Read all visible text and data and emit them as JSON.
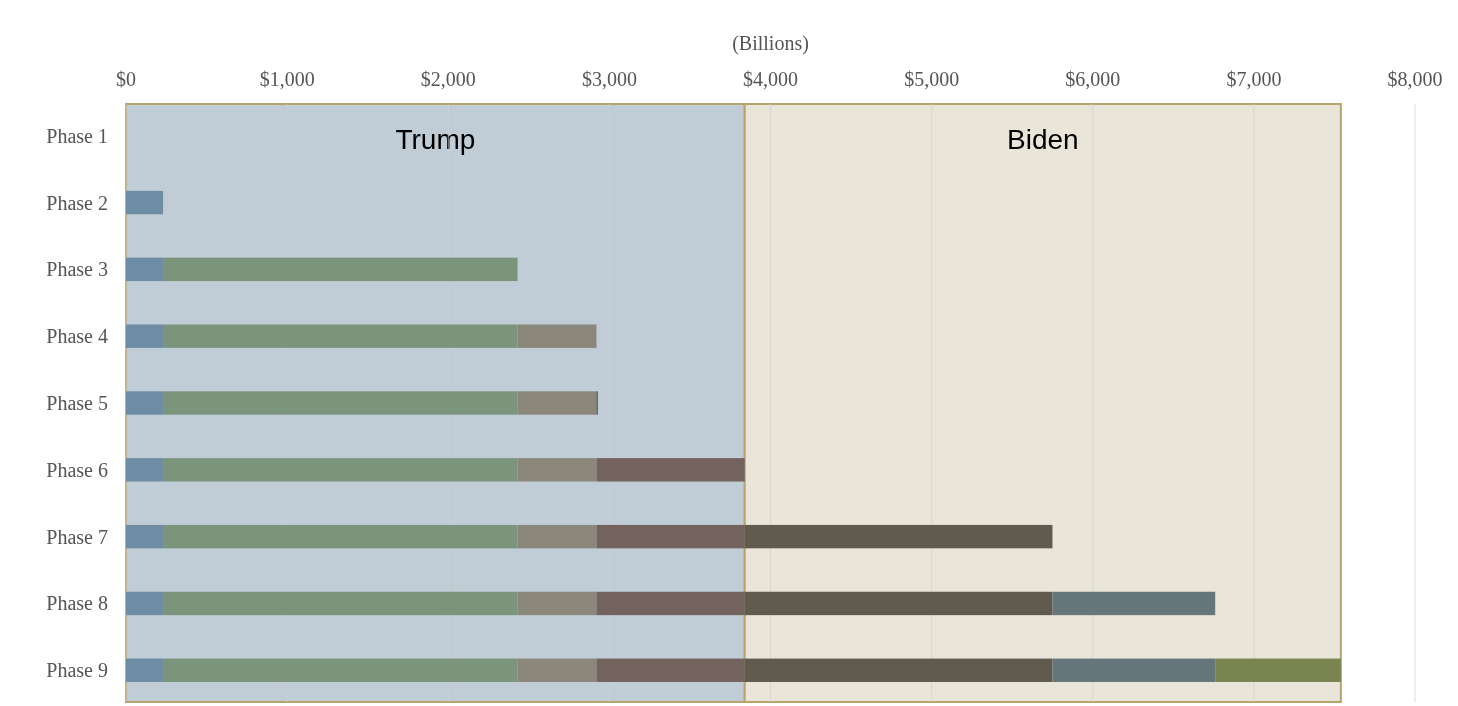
{
  "chart_data": {
    "type": "bar",
    "orientation": "horizontal",
    "stacked": true,
    "xlabel": "(Billions)",
    "categories": [
      "Phase 1",
      "Phase 2",
      "Phase 3",
      "Phase 4",
      "Phase 5",
      "Phase 6",
      "Phase 7",
      "Phase 8",
      "Phase 9"
    ],
    "series": [
      {
        "color": "#6e8ca3",
        "values": [
          null,
          230,
          230,
          230,
          230,
          230,
          230,
          230,
          230
        ]
      },
      {
        "color": "#7a957b",
        "values": [
          null,
          null,
          2200,
          2200,
          2200,
          2200,
          2200,
          2200,
          2200
        ]
      },
      {
        "color": "#8b877b",
        "values": [
          null,
          null,
          null,
          490,
          490,
          490,
          490,
          490,
          490
        ]
      },
      {
        "color": "#5c4a4a",
        "values": [
          null,
          null,
          null,
          null,
          8,
          null,
          null,
          null,
          null
        ]
      },
      {
        "color": "#74625e",
        "values": [
          null,
          null,
          null,
          null,
          null,
          920,
          920,
          920,
          920
        ]
      },
      {
        "color": "#5f5b4f",
        "values": [
          null,
          null,
          null,
          null,
          null,
          null,
          1910,
          1910,
          1910
        ]
      },
      {
        "color": "#66767a",
        "values": [
          null,
          null,
          null,
          null,
          null,
          null,
          null,
          1010,
          1010
        ]
      },
      {
        "color": "#7a8450",
        "values": [
          null,
          null,
          null,
          null,
          null,
          null,
          null,
          null,
          780
        ]
      }
    ],
    "xlim": [
      0,
      8000
    ],
    "xticks": [
      {
        "value": 0,
        "label": "$0"
      },
      {
        "value": 1000,
        "label": "$1,000"
      },
      {
        "value": 2000,
        "label": "$2,000"
      },
      {
        "value": 3000,
        "label": "$3,000"
      },
      {
        "value": 4000,
        "label": "$4,000"
      },
      {
        "value": 5000,
        "label": "$5,000"
      },
      {
        "value": 6000,
        "label": "$6,000"
      },
      {
        "value": 7000,
        "label": "$7,000"
      },
      {
        "value": 8000,
        "label": "$8,000"
      }
    ],
    "grid": "x",
    "bands": [
      {
        "axis": "x",
        "from": 0,
        "to": 3840,
        "label": "Trump",
        "color": "#c0ccd6"
      },
      {
        "axis": "x",
        "from": 3840,
        "to": 7540,
        "label": "Biden",
        "color": "#e9e5d8"
      }
    ]
  }
}
